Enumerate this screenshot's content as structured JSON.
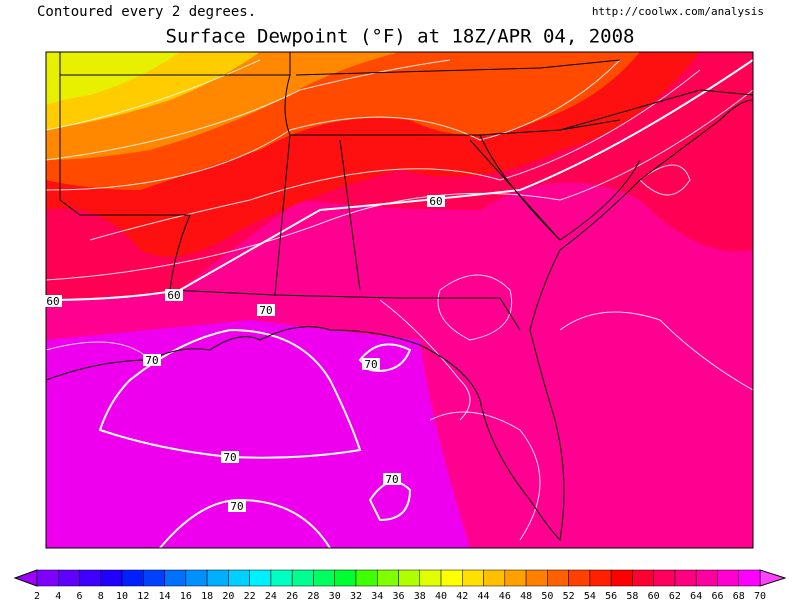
{
  "header": {
    "note": "Contoured every 2 degrees.",
    "source": "http://coolwx.com/analysis",
    "title": "Surface Dewpoint (°F) at 18Z/APR 04, 2008"
  },
  "contour_labels": [
    60,
    60,
    60,
    70,
    70,
    70,
    70,
    70,
    70
  ],
  "legend": {
    "values": [
      2,
      4,
      6,
      8,
      10,
      12,
      14,
      16,
      18,
      20,
      22,
      24,
      26,
      28,
      30,
      32,
      34,
      36,
      38,
      40,
      42,
      44,
      46,
      48,
      50,
      52,
      54,
      56,
      58,
      60,
      62,
      64,
      66,
      68,
      70
    ],
    "colors": [
      "#8000ff",
      "#6000ff",
      "#4000ff",
      "#2000ff",
      "#0020ff",
      "#0040ff",
      "#0070ff",
      "#0090ff",
      "#00b0ff",
      "#00d0ff",
      "#00f0ff",
      "#00ffc0",
      "#00ff90",
      "#00ff60",
      "#00ff30",
      "#40ff00",
      "#80ff00",
      "#b0ff00",
      "#e0ff00",
      "#ffff00",
      "#ffe000",
      "#ffc000",
      "#ffa000",
      "#ff8000",
      "#ff6000",
      "#ff4000",
      "#ff2000",
      "#ff0000",
      "#ff0030",
      "#ff0060",
      "#ff0080",
      "#ff00a0",
      "#ff00d0",
      "#ff00ff"
    ],
    "below_color": "#a000ff",
    "above_color": "#ff40ff"
  }
}
